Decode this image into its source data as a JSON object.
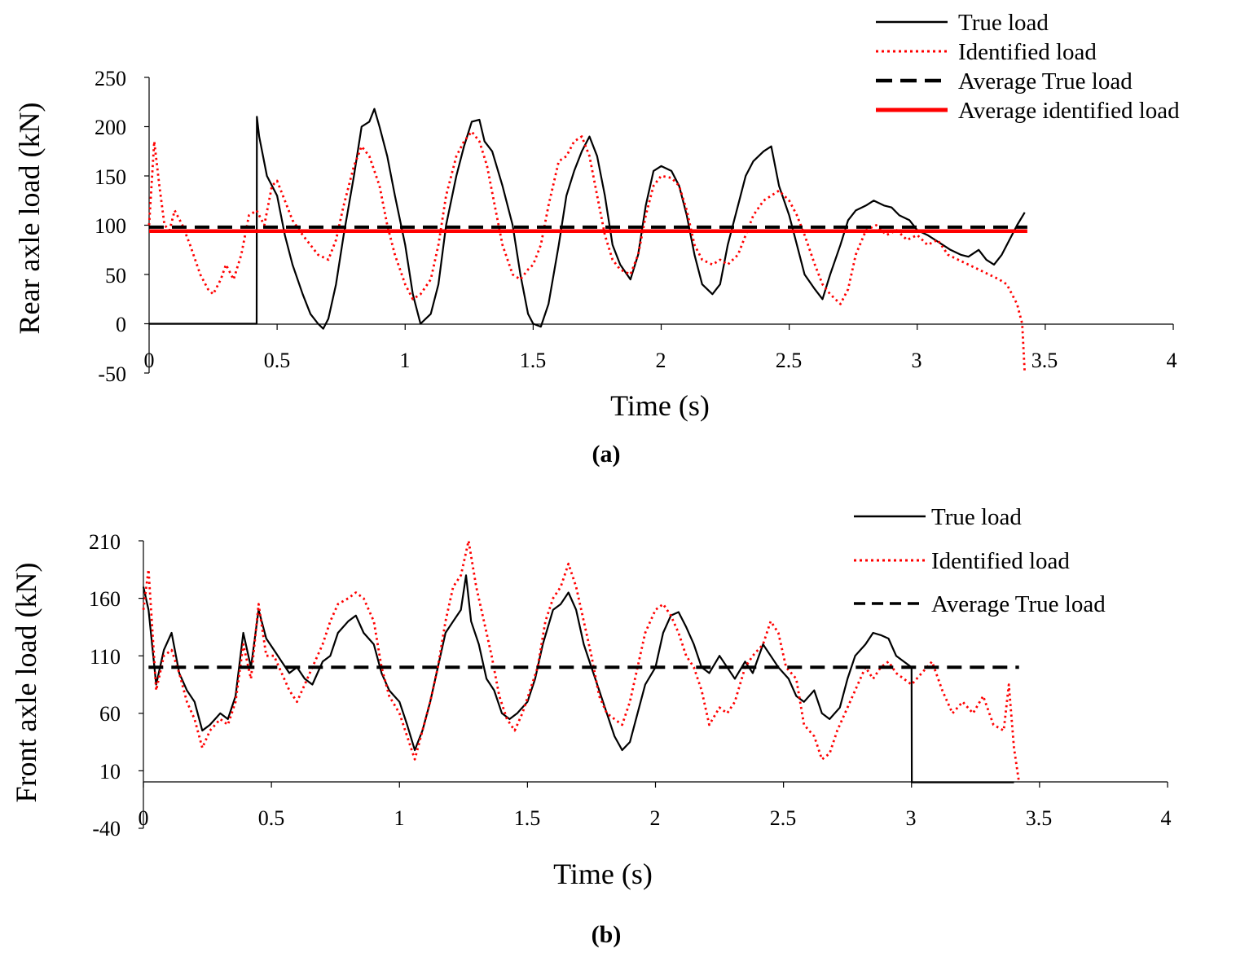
{
  "chart_data": [
    {
      "type": "line",
      "panel_label": "(a)",
      "xlabel": "Time (s)",
      "ylabel": "Rear axle load (kN)",
      "xlim": [
        0,
        4
      ],
      "ylim": [
        -50,
        250
      ],
      "xticks": [
        "0",
        "0.5",
        "1",
        "1.5",
        "2",
        "2.5",
        "3",
        "3.5",
        "4"
      ],
      "yticks": [
        "250",
        "200",
        "150",
        "100",
        "50",
        "0",
        "-50"
      ],
      "legend": [
        "True load",
        "Identified load",
        "Average True load",
        "Average identified load"
      ],
      "series": [
        {
          "name": "True load",
          "color": "#000000",
          "style": "solid",
          "x": [
            0,
            0.42,
            0.421,
            0.43,
            0.46,
            0.5,
            0.53,
            0.56,
            0.6,
            0.63,
            0.66,
            0.68,
            0.7,
            0.73,
            0.76,
            0.8,
            0.83,
            0.86,
            0.88,
            0.9,
            0.93,
            0.96,
            1.0,
            1.03,
            1.06,
            1.1,
            1.13,
            1.16,
            1.2,
            1.23,
            1.26,
            1.29,
            1.31,
            1.34,
            1.38,
            1.42,
            1.45,
            1.48,
            1.5,
            1.53,
            1.56,
            1.6,
            1.63,
            1.66,
            1.69,
            1.72,
            1.75,
            1.78,
            1.81,
            1.84,
            1.88,
            1.91,
            1.94,
            1.97,
            2.0,
            2.04,
            2.07,
            2.1,
            2.13,
            2.16,
            2.2,
            2.23,
            2.26,
            2.3,
            2.33,
            2.36,
            2.4,
            2.43,
            2.46,
            2.5,
            2.53,
            2.56,
            2.6,
            2.63,
            2.66,
            2.7,
            2.73,
            2.76,
            2.8,
            2.83,
            2.87,
            2.9,
            2.93,
            2.97,
            3.0,
            3.04,
            3.07,
            3.1,
            3.13,
            3.17,
            3.2,
            3.24,
            3.27,
            3.3,
            3.33,
            3.36,
            3.39,
            3.42
          ],
          "y": [
            0,
            0,
            210,
            190,
            150,
            130,
            90,
            60,
            30,
            10,
            0,
            -5,
            5,
            40,
            90,
            150,
            200,
            205,
            218,
            200,
            170,
            130,
            80,
            30,
            0,
            10,
            40,
            100,
            150,
            180,
            205,
            207,
            185,
            175,
            140,
            100,
            50,
            10,
            0,
            -3,
            20,
            80,
            130,
            155,
            175,
            190,
            170,
            130,
            80,
            60,
            45,
            70,
            120,
            155,
            160,
            155,
            140,
            110,
            70,
            40,
            30,
            40,
            80,
            120,
            150,
            165,
            175,
            180,
            140,
            110,
            80,
            50,
            35,
            25,
            50,
            80,
            105,
            115,
            120,
            125,
            120,
            118,
            110,
            105,
            95,
            90,
            85,
            80,
            75,
            70,
            68,
            75,
            65,
            60,
            70,
            85,
            100,
            113
          ]
        },
        {
          "name": "Identified load",
          "color": "#ff0000",
          "style": "dotted",
          "x": [
            0,
            0.02,
            0.04,
            0.06,
            0.08,
            0.1,
            0.13,
            0.16,
            0.2,
            0.23,
            0.25,
            0.28,
            0.3,
            0.33,
            0.36,
            0.39,
            0.42,
            0.45,
            0.48,
            0.5,
            0.53,
            0.56,
            0.6,
            0.63,
            0.66,
            0.7,
            0.73,
            0.76,
            0.8,
            0.83,
            0.86,
            0.9,
            0.93,
            0.96,
            1.0,
            1.03,
            1.06,
            1.1,
            1.13,
            1.16,
            1.2,
            1.23,
            1.26,
            1.29,
            1.32,
            1.35,
            1.38,
            1.42,
            1.45,
            1.48,
            1.5,
            1.53,
            1.56,
            1.6,
            1.63,
            1.66,
            1.69,
            1.72,
            1.75,
            1.78,
            1.81,
            1.84,
            1.88,
            1.91,
            1.94,
            1.97,
            2.0,
            2.04,
            2.07,
            2.1,
            2.13,
            2.16,
            2.2,
            2.23,
            2.26,
            2.3,
            2.33,
            2.36,
            2.4,
            2.43,
            2.46,
            2.5,
            2.53,
            2.56,
            2.6,
            2.63,
            2.66,
            2.7,
            2.73,
            2.76,
            2.8,
            2.84,
            2.88,
            2.92,
            2.96,
            3.0,
            3.04,
            3.08,
            3.12,
            3.16,
            3.2,
            3.24,
            3.28,
            3.32,
            3.35,
            3.37,
            3.39,
            3.41,
            3.42
          ],
          "y": [
            100,
            185,
            140,
            100,
            95,
            115,
            100,
            80,
            50,
            35,
            30,
            45,
            60,
            45,
            70,
            110,
            115,
            100,
            140,
            145,
            125,
            105,
            90,
            80,
            70,
            65,
            85,
            120,
            160,
            180,
            170,
            140,
            100,
            70,
            40,
            25,
            30,
            45,
            80,
            130,
            170,
            185,
            195,
            185,
            160,
            120,
            80,
            50,
            45,
            55,
            60,
            80,
            120,
            165,
            170,
            185,
            190,
            170,
            130,
            90,
            65,
            55,
            50,
            70,
            110,
            140,
            150,
            148,
            140,
            115,
            80,
            65,
            60,
            65,
            60,
            70,
            90,
            110,
            125,
            130,
            135,
            125,
            110,
            90,
            60,
            40,
            30,
            20,
            35,
            70,
            95,
            100,
            90,
            95,
            85,
            90,
            80,
            85,
            70,
            65,
            60,
            55,
            50,
            45,
            40,
            30,
            20,
            0,
            -50
          ]
        },
        {
          "name": "Average True load",
          "color": "#000000",
          "style": "dashed",
          "x": [
            0,
            3.43
          ],
          "y": [
            98,
            98
          ]
        },
        {
          "name": "Average identified load",
          "color": "#ff0000",
          "style": "solid-thick",
          "x": [
            0,
            3.43
          ],
          "y": [
            94,
            94
          ]
        }
      ]
    },
    {
      "type": "line",
      "panel_label": "(b)",
      "xlabel": "Time (s)",
      "ylabel": "Front axle load (kN)",
      "xlim": [
        0,
        4
      ],
      "ylim": [
        -40,
        210
      ],
      "x_axis_at": 0,
      "xticks": [
        "0",
        "0.5",
        "1",
        "1.5",
        "2",
        "2.5",
        "3",
        "3.5",
        "4"
      ],
      "yticks": [
        "210",
        "160",
        "110",
        "60",
        "10",
        "-40"
      ],
      "legend": [
        "True load",
        "Identified load",
        "Average True load"
      ],
      "series": [
        {
          "name": "True load",
          "color": "#000000",
          "style": "solid",
          "x": [
            0,
            0.02,
            0.05,
            0.08,
            0.11,
            0.14,
            0.17,
            0.2,
            0.23,
            0.26,
            0.3,
            0.33,
            0.36,
            0.39,
            0.42,
            0.45,
            0.48,
            0.51,
            0.54,
            0.57,
            0.6,
            0.63,
            0.66,
            0.7,
            0.73,
            0.76,
            0.8,
            0.83,
            0.86,
            0.9,
            0.93,
            0.96,
            1.0,
            1.03,
            1.06,
            1.09,
            1.12,
            1.15,
            1.18,
            1.21,
            1.24,
            1.26,
            1.28,
            1.31,
            1.34,
            1.37,
            1.4,
            1.43,
            1.46,
            1.5,
            1.53,
            1.56,
            1.6,
            1.63,
            1.66,
            1.69,
            1.72,
            1.75,
            1.78,
            1.81,
            1.84,
            1.87,
            1.9,
            1.93,
            1.96,
            2.0,
            2.03,
            2.06,
            2.09,
            2.12,
            2.15,
            2.18,
            2.21,
            2.25,
            2.28,
            2.31,
            2.35,
            2.38,
            2.42,
            2.45,
            2.48,
            2.52,
            2.55,
            2.58,
            2.62,
            2.65,
            2.68,
            2.72,
            2.75,
            2.78,
            2.82,
            2.85,
            2.88,
            2.91,
            2.94,
            2.97,
            3.0,
            3.001,
            3.4
          ],
          "y": [
            170,
            150,
            85,
            115,
            130,
            95,
            80,
            70,
            45,
            50,
            60,
            55,
            75,
            130,
            100,
            150,
            125,
            115,
            105,
            95,
            100,
            90,
            85,
            105,
            110,
            130,
            140,
            145,
            130,
            120,
            95,
            80,
            70,
            50,
            28,
            45,
            70,
            100,
            130,
            140,
            150,
            180,
            140,
            120,
            90,
            80,
            60,
            55,
            60,
            70,
            90,
            120,
            150,
            155,
            165,
            150,
            120,
            100,
            80,
            60,
            40,
            28,
            35,
            60,
            85,
            100,
            130,
            145,
            148,
            135,
            120,
            100,
            95,
            110,
            100,
            90,
            105,
            95,
            120,
            110,
            100,
            90,
            75,
            70,
            80,
            60,
            55,
            65,
            90,
            110,
            120,
            130,
            128,
            125,
            110,
            105,
            100,
            0,
            0
          ]
        },
        {
          "name": "Identified load",
          "color": "#ff0000",
          "style": "dotted",
          "x": [
            0,
            0.02,
            0.05,
            0.08,
            0.11,
            0.14,
            0.17,
            0.2,
            0.23,
            0.26,
            0.3,
            0.33,
            0.36,
            0.39,
            0.42,
            0.45,
            0.48,
            0.51,
            0.54,
            0.57,
            0.6,
            0.63,
            0.66,
            0.7,
            0.73,
            0.76,
            0.8,
            0.83,
            0.86,
            0.9,
            0.93,
            0.96,
            1.0,
            1.03,
            1.06,
            1.09,
            1.12,
            1.15,
            1.18,
            1.21,
            1.24,
            1.27,
            1.3,
            1.33,
            1.36,
            1.39,
            1.42,
            1.45,
            1.48,
            1.51,
            1.54,
            1.57,
            1.6,
            1.63,
            1.66,
            1.69,
            1.72,
            1.75,
            1.78,
            1.81,
            1.84,
            1.87,
            1.9,
            1.93,
            1.96,
            2.0,
            2.03,
            2.06,
            2.09,
            2.12,
            2.15,
            2.18,
            2.21,
            2.25,
            2.28,
            2.31,
            2.35,
            2.38,
            2.42,
            2.45,
            2.48,
            2.51,
            2.55,
            2.58,
            2.62,
            2.65,
            2.68,
            2.71,
            2.75,
            2.78,
            2.82,
            2.85,
            2.88,
            2.91,
            2.94,
            2.97,
            3.0,
            3.04,
            3.08,
            3.12,
            3.16,
            3.2,
            3.24,
            3.28,
            3.32,
            3.36,
            3.38,
            3.4,
            3.42
          ],
          "y": [
            150,
            185,
            80,
            110,
            115,
            95,
            70,
            55,
            30,
            45,
            55,
            50,
            70,
            120,
            90,
            155,
            110,
            110,
            95,
            80,
            70,
            85,
            100,
            120,
            140,
            155,
            160,
            165,
            160,
            140,
            100,
            75,
            60,
            40,
            20,
            45,
            70,
            100,
            140,
            170,
            180,
            210,
            170,
            140,
            110,
            75,
            55,
            45,
            60,
            80,
            100,
            140,
            160,
            170,
            190,
            170,
            140,
            110,
            75,
            60,
            55,
            50,
            70,
            100,
            130,
            150,
            155,
            145,
            130,
            110,
            100,
            80,
            50,
            65,
            60,
            70,
            100,
            110,
            120,
            140,
            130,
            100,
            90,
            50,
            40,
            20,
            25,
            45,
            65,
            80,
            100,
            90,
            100,
            105,
            95,
            90,
            85,
            95,
            105,
            80,
            60,
            70,
            60,
            75,
            50,
            45,
            85,
            30,
            0
          ]
        },
        {
          "name": "Average True load",
          "color": "#000000",
          "style": "dashed",
          "x": [
            0.02,
            3.42
          ],
          "y": [
            100,
            100
          ]
        }
      ]
    }
  ]
}
